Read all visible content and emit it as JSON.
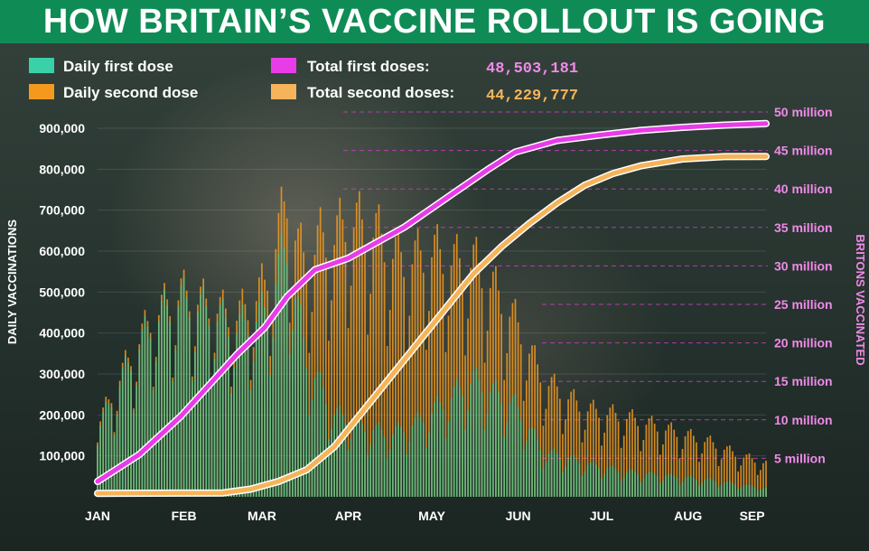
{
  "header": {
    "title": "HOW BRITAIN’S VACCINE ROLLOUT IS GOING"
  },
  "legend": [
    {
      "label": "Daily first dose",
      "color": "#3ad0a8"
    },
    {
      "label": "Daily second dose",
      "color": "#f39a1e"
    },
    {
      "label": "Total first doses:",
      "value": "48,503,181",
      "color": "#e83ce8",
      "value_color": "#f08ae8"
    },
    {
      "label": "Total second doses:",
      "value": "44,229,777",
      "color": "#f6b45a",
      "value_color": "#f6b45a"
    }
  ],
  "chart_data": {
    "type": "bar",
    "ylabel": "DAILY VACCINATIONS",
    "y2label": "BRITONS VACCINATED",
    "ylim": [
      0,
      900000
    ],
    "y2lim": [
      0,
      50000000
    ],
    "yticks": [
      "100,000",
      "200,000",
      "300,000",
      "400,000",
      "500,000",
      "600,000",
      "700,000",
      "800,000",
      "900,000"
    ],
    "y2ticks": [
      "5 million",
      "10 million",
      "15 million",
      "20 million",
      "25 million",
      "30 million",
      "35 million",
      "40 million",
      "45 million",
      "50 million"
    ],
    "xticks": [
      "JAN",
      "FEB",
      "MAR",
      "APR",
      "MAY",
      "JUN",
      "JUL",
      "AUG",
      "SEP"
    ],
    "grid": true,
    "legend": "top-left",
    "daily_first_dose": {
      "name": "Daily first dose",
      "knots": [
        [
          0,
          160000
        ],
        [
          10,
          300000
        ],
        [
          20,
          420000
        ],
        [
          30,
          470000
        ],
        [
          40,
          440000
        ],
        [
          50,
          400000
        ],
        [
          60,
          440000
        ],
        [
          68,
          600000
        ],
        [
          75,
          330000
        ],
        [
          85,
          200000
        ],
        [
          95,
          170000
        ],
        [
          105,
          150000
        ],
        [
          115,
          180000
        ],
        [
          125,
          230000
        ],
        [
          135,
          280000
        ],
        [
          145,
          240000
        ],
        [
          150,
          220000
        ],
        [
          160,
          110000
        ],
        [
          175,
          80000
        ],
        [
          190,
          60000
        ],
        [
          205,
          50000
        ],
        [
          220,
          40000
        ],
        [
          230,
          30000
        ],
        [
          240,
          20000
        ]
      ]
    },
    "daily_second_dose": {
      "name": "Daily second dose",
      "knots": [
        [
          0,
          10000
        ],
        [
          30,
          15000
        ],
        [
          45,
          20000
        ],
        [
          55,
          40000
        ],
        [
          65,
          90000
        ],
        [
          72,
          150000
        ],
        [
          80,
          350000
        ],
        [
          90,
          480000
        ],
        [
          100,
          470000
        ],
        [
          110,
          400000
        ],
        [
          120,
          380000
        ],
        [
          130,
          300000
        ],
        [
          140,
          260000
        ],
        [
          150,
          200000
        ],
        [
          160,
          170000
        ],
        [
          175,
          130000
        ],
        [
          190,
          130000
        ],
        [
          205,
          110000
        ],
        [
          220,
          90000
        ],
        [
          230,
          70000
        ],
        [
          240,
          60000
        ]
      ]
    },
    "total_first_doses": {
      "name": "Total first doses",
      "points": [
        [
          0,
          2000000
        ],
        [
          15,
          5500000
        ],
        [
          30,
          10500000
        ],
        [
          40,
          14500000
        ],
        [
          50,
          18500000
        ],
        [
          60,
          22000000
        ],
        [
          68,
          26000000
        ],
        [
          78,
          29500000
        ],
        [
          90,
          31000000
        ],
        [
          100,
          33000000
        ],
        [
          110,
          35000000
        ],
        [
          120,
          37500000
        ],
        [
          130,
          40000000
        ],
        [
          140,
          42500000
        ],
        [
          150,
          44800000
        ],
        [
          165,
          46300000
        ],
        [
          180,
          47000000
        ],
        [
          195,
          47600000
        ],
        [
          210,
          48000000
        ],
        [
          225,
          48300000
        ],
        [
          240,
          48500000
        ]
      ]
    },
    "total_second_doses": {
      "name": "Total second doses",
      "points": [
        [
          0,
          450000
        ],
        [
          30,
          480000
        ],
        [
          45,
          500000
        ],
        [
          55,
          1000000
        ],
        [
          65,
          2000000
        ],
        [
          75,
          3500000
        ],
        [
          85,
          6500000
        ],
        [
          95,
          11000000
        ],
        [
          105,
          15500000
        ],
        [
          115,
          20000000
        ],
        [
          125,
          24500000
        ],
        [
          135,
          29000000
        ],
        [
          145,
          32500000
        ],
        [
          155,
          35500000
        ],
        [
          165,
          38200000
        ],
        [
          175,
          40500000
        ],
        [
          185,
          42000000
        ],
        [
          195,
          43000000
        ],
        [
          210,
          43900000
        ],
        [
          225,
          44200000
        ],
        [
          240,
          44230000
        ]
      ]
    }
  }
}
